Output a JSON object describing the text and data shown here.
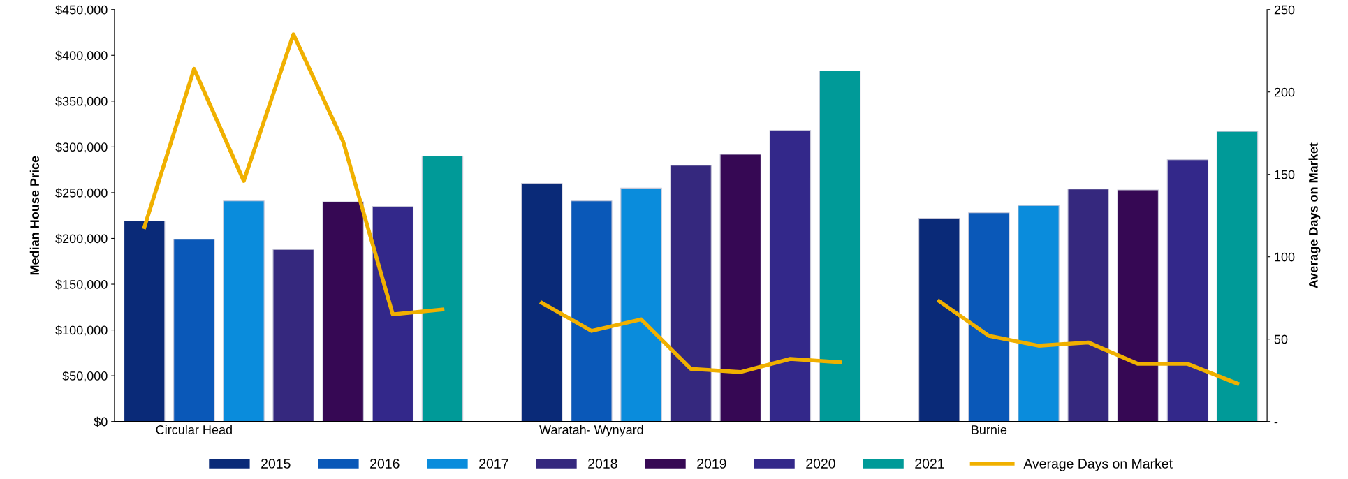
{
  "chart_data": {
    "type": "bar",
    "ylabel": "Median House Price",
    "y2label": "Average Days on Market",
    "categories": [
      null,
      "Circular Head",
      null,
      null,
      null,
      null,
      null,
      null,
      null,
      "Waratah- Wynyard",
      null,
      null,
      null,
      null,
      null,
      null,
      null,
      "Burnie",
      null,
      null,
      null,
      null,
      null
    ],
    "series": [
      {
        "name": "2015",
        "color": "#0a2a78",
        "values": [
          219000,
          null,
          null,
          null,
          null,
          null,
          null,
          null,
          260000,
          null,
          null,
          null,
          null,
          null,
          null,
          null,
          222000,
          null,
          null,
          null,
          null,
          null,
          null
        ]
      },
      {
        "name": "2016",
        "color": "#0a58b8",
        "values": [
          null,
          199000,
          null,
          null,
          null,
          null,
          null,
          null,
          null,
          241000,
          null,
          null,
          null,
          null,
          null,
          null,
          null,
          228000,
          null,
          null,
          null,
          null,
          null
        ]
      },
      {
        "name": "2017",
        "color": "#0a8cdc",
        "values": [
          null,
          null,
          241000,
          null,
          null,
          null,
          null,
          null,
          null,
          null,
          255000,
          null,
          null,
          null,
          null,
          null,
          null,
          null,
          236000,
          null,
          null,
          null,
          null
        ]
      },
      {
        "name": "2018",
        "color": "#35287e",
        "values": [
          null,
          null,
          null,
          188000,
          null,
          null,
          null,
          null,
          null,
          null,
          null,
          280000,
          null,
          null,
          null,
          null,
          null,
          null,
          null,
          254000,
          null,
          null,
          null
        ]
      },
      {
        "name": "2019",
        "color": "#360854",
        "values": [
          null,
          null,
          null,
          null,
          240000,
          null,
          null,
          null,
          null,
          null,
          null,
          null,
          292000,
          null,
          null,
          null,
          null,
          null,
          null,
          null,
          253000,
          null,
          null
        ]
      },
      {
        "name": "2020",
        "color": "#33288a",
        "values": [
          null,
          null,
          null,
          null,
          null,
          235000,
          null,
          null,
          null,
          null,
          null,
          null,
          null,
          318000,
          null,
          null,
          null,
          null,
          null,
          null,
          null,
          286000,
          null
        ]
      },
      {
        "name": "2021",
        "color": "#009a98",
        "values": [
          null,
          null,
          null,
          null,
          null,
          null,
          290000,
          null,
          null,
          null,
          null,
          null,
          null,
          null,
          383000,
          null,
          null,
          null,
          null,
          null,
          null,
          null,
          317000
        ]
      },
      {
        "name": "Average Days on Market",
        "type": "line",
        "axis": "y2",
        "color": "#f0b000",
        "values": [
          118,
          214,
          146,
          235,
          170,
          65,
          68,
          null,
          72,
          55,
          62,
          32,
          30,
          38,
          36,
          null,
          73,
          52,
          46,
          48,
          35,
          35,
          23
        ]
      }
    ],
    "ylim": [
      0,
      450000
    ],
    "yticks": [
      {
        "value": 0,
        "label": "$0"
      },
      {
        "value": 50000,
        "label": "$50,000"
      },
      {
        "value": 100000,
        "label": "$100,000"
      },
      {
        "value": 150000,
        "label": "$150,000"
      },
      {
        "value": 200000,
        "label": "$200,000"
      },
      {
        "value": 250000,
        "label": "$250,000"
      },
      {
        "value": 300000,
        "label": "$300,000"
      },
      {
        "value": 350000,
        "label": "$350,000"
      },
      {
        "value": 400000,
        "label": "$400,000"
      },
      {
        "value": 450000,
        "label": "$450,000"
      }
    ],
    "y2lim": [
      0,
      250
    ],
    "y2ticks": [
      {
        "value": 0,
        "label": "-"
      },
      50,
      100,
      150,
      200,
      250
    ],
    "legend": "bottom",
    "grid": false
  }
}
